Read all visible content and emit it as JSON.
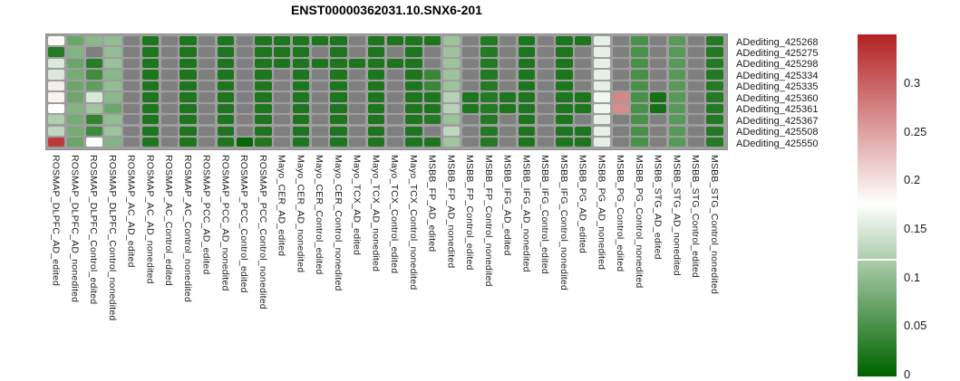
{
  "title": "ENST00000362031.10.SNX6-201",
  "colors": {
    "na_cell": "#7f7f7f",
    "grid_gutter": "#9e9e9e",
    "frame_border": "#8f8f8f",
    "scale_min_color": "#006400",
    "scale_mid_color": "#ffffff",
    "scale_max_color": "#b22222"
  },
  "chart_data": {
    "type": "heatmap",
    "title": "ENST00000362031.10.SNX6-201",
    "legend_position": "right",
    "value_scale": {
      "min": 0,
      "white_point": 0.175,
      "max": 0.35,
      "min_color": "#006400",
      "mid_color": "#ffffff",
      "max_color": "#b22222",
      "na_color": "#7f7f7f"
    },
    "colorbar": {
      "tick_values": [
        0.3,
        0.25,
        0.2,
        0.15,
        0.1,
        0.05,
        0
      ],
      "tick_labels": [
        "0.3",
        "0.25",
        "0.2",
        "0.15",
        "0.1",
        "0.05",
        "0"
      ]
    },
    "rows": [
      "ADediting_425268",
      "ADediting_425275",
      "ADediting_425298",
      "ADediting_425334",
      "ADediting_425335",
      "ADediting_425360",
      "ADediting_425361",
      "ADediting_425367",
      "ADediting_425508",
      "ADediting_425550"
    ],
    "columns": [
      "ROSMAP_DLPFC_AD_edited",
      "ROSMAP_DLPFC_AD_nonedited",
      "ROSMAP_DLPFC_Control_edited",
      "ROSMAP_DLPFC_Control_nonedited",
      "ROSMAP_AC_AD_edited",
      "ROSMAP_AC_AD_nonedited",
      "ROSMAP_AC_Control_edited",
      "ROSMAP_AC_Control_nonedited",
      "ROSMAP_PCC_AD_edited",
      "ROSMAP_PCC_AD_nonedited",
      "ROSMAP_PCC_Control_edited",
      "ROSMAP_PCC_Control_nonedited",
      "Mayo_CER_AD_edited",
      "Mayo_CER_AD_nonedited",
      "Mayo_CER_Control_edited",
      "Mayo_CER_Control_nonedited",
      "Mayo_TCX_AD_edited",
      "Mayo_TCX_AD_nonedited",
      "Mayo_TCX_Control_edited",
      "Mayo_TCX_Control_nonedited",
      "MSBB_FP_AD_edited",
      "MSBB_FP_AD_nonedited",
      "MSBB_FP_Control_edited",
      "MSBB_FP_Control_nonedited",
      "MSBB_IFG_AD_edited",
      "MSBB_IFG_AD_nonedited",
      "MSBB_IFG_Control_edited",
      "MSBB_IFG_Control_nonedited",
      "MSBB_PG_AD_edited",
      "MSBB_PG_AD_nonedited",
      "MSBB_PG_Control_edited",
      "MSBB_PG_Control_nonedited",
      "MSBB_STG_AD_edited",
      "MSBB_STG_AD_nonedited",
      "MSBB_STG_Control_edited",
      "MSBB_STG_Control_nonedited"
    ],
    "values": [
      [
        0.18,
        0.073,
        0.095,
        0.1,
        null,
        0.02,
        null,
        0.02,
        null,
        0.02,
        null,
        0.02,
        0.02,
        0.02,
        0.02,
        0.02,
        null,
        0.02,
        0.02,
        0.02,
        0.02,
        0.107,
        null,
        0.025,
        null,
        0.02,
        null,
        0.02,
        0.02,
        0.158,
        null,
        0.05,
        null,
        0.06,
        null,
        0.025
      ],
      [
        0.025,
        0.09,
        null,
        0.1,
        null,
        0.02,
        null,
        0.02,
        null,
        0.02,
        null,
        0.02,
        0.02,
        0.02,
        null,
        0.02,
        null,
        0.02,
        null,
        0.02,
        null,
        0.107,
        null,
        0.025,
        null,
        0.02,
        null,
        0.02,
        null,
        0.158,
        null,
        0.05,
        null,
        0.06,
        null,
        0.025
      ],
      [
        0.15,
        0.073,
        0.027,
        0.105,
        null,
        0.02,
        null,
        0.02,
        null,
        0.02,
        null,
        0.02,
        0.02,
        0.02,
        0.02,
        0.02,
        0.02,
        0.02,
        0.02,
        0.02,
        null,
        0.107,
        null,
        0.025,
        null,
        0.02,
        null,
        0.02,
        null,
        0.158,
        null,
        0.05,
        null,
        0.06,
        null,
        0.025
      ],
      [
        0.15,
        0.08,
        0.045,
        0.095,
        null,
        0.02,
        null,
        0.02,
        null,
        0.02,
        null,
        0.02,
        null,
        0.02,
        null,
        0.02,
        null,
        0.02,
        null,
        0.02,
        0.04,
        0.107,
        null,
        0.025,
        null,
        0.02,
        null,
        0.02,
        null,
        0.158,
        null,
        0.05,
        null,
        0.06,
        null,
        0.025
      ],
      [
        0.19,
        0.075,
        0.065,
        0.1,
        null,
        0.02,
        null,
        0.02,
        null,
        0.02,
        null,
        0.02,
        null,
        0.02,
        null,
        0.02,
        null,
        0.02,
        null,
        0.02,
        0.04,
        0.107,
        null,
        0.025,
        null,
        0.02,
        null,
        0.02,
        null,
        0.158,
        null,
        0.05,
        null,
        0.06,
        null,
        0.025
      ],
      [
        0.185,
        0.075,
        0.15,
        0.095,
        null,
        0.02,
        null,
        0.02,
        null,
        0.02,
        null,
        0.02,
        null,
        0.02,
        null,
        0.02,
        null,
        0.02,
        null,
        0.02,
        0.02,
        0.124,
        0.02,
        0.025,
        0.02,
        0.02,
        null,
        0.02,
        0.02,
        0.165,
        0.27,
        0.05,
        0.015,
        0.06,
        null,
        0.025
      ],
      [
        0.175,
        0.09,
        0.11,
        0.075,
        null,
        0.02,
        null,
        0.02,
        null,
        0.02,
        null,
        0.02,
        null,
        0.02,
        null,
        0.02,
        null,
        0.02,
        null,
        0.02,
        0.02,
        0.124,
        0.02,
        0.025,
        0.02,
        0.02,
        null,
        0.02,
        0.02,
        0.165,
        0.265,
        0.05,
        0.015,
        0.06,
        null,
        0.025
      ],
      [
        0.12,
        0.08,
        0.035,
        0.1,
        null,
        0.02,
        null,
        0.02,
        null,
        0.02,
        null,
        0.02,
        null,
        0.02,
        null,
        0.02,
        null,
        0.02,
        null,
        0.02,
        0.025,
        0.107,
        null,
        0.025,
        null,
        0.02,
        null,
        0.02,
        null,
        0.158,
        null,
        0.05,
        null,
        0.06,
        null,
        0.025
      ],
      [
        0.13,
        0.08,
        0.042,
        0.107,
        null,
        0.02,
        null,
        0.02,
        null,
        0.02,
        null,
        0.02,
        null,
        0.02,
        null,
        0.02,
        null,
        0.02,
        null,
        0.02,
        null,
        0.13,
        null,
        0.025,
        null,
        0.02,
        null,
        0.02,
        0.02,
        0.158,
        null,
        0.05,
        null,
        0.06,
        null,
        0.025
      ],
      [
        0.33,
        0.073,
        0.175,
        0.09,
        null,
        0.02,
        null,
        0.02,
        null,
        0.02,
        0.003,
        0.022,
        null,
        0.02,
        null,
        0.02,
        null,
        0.02,
        null,
        0.02,
        0.02,
        0.11,
        null,
        0.025,
        null,
        0.02,
        null,
        0.02,
        0.02,
        0.158,
        null,
        0.05,
        null,
        0.06,
        null,
        0.025
      ]
    ]
  }
}
